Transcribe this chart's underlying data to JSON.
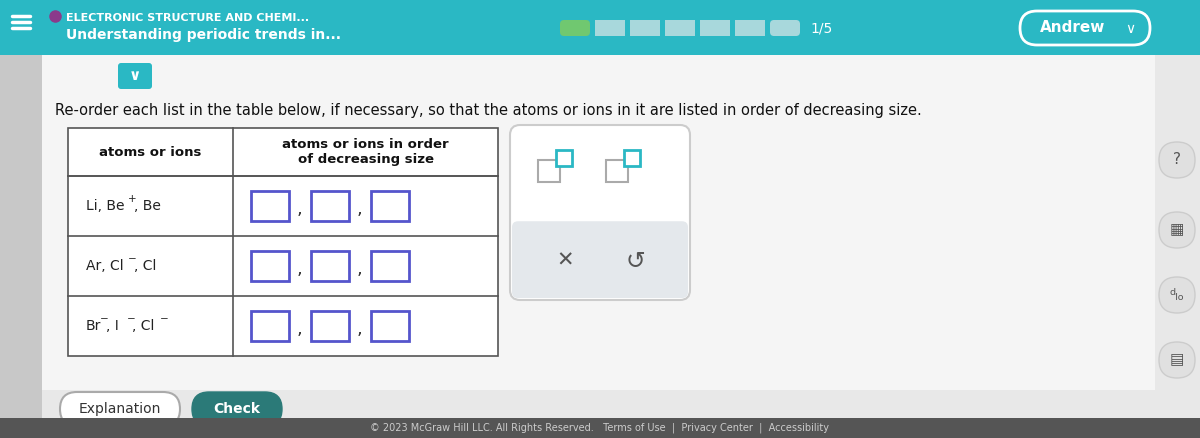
{
  "bg_color": "#f0f0f0",
  "content_bg": "#f5f5f5",
  "header_bg": "#2ab8c4",
  "header_text1": "ELECTRONIC STRUCTURE AND CHEMI...",
  "header_text2": "Understanding periodic trends in...",
  "header_left_bar_color": "#b0b0b0",
  "title_dot_color": "#8b3a8b",
  "progress_filled": "#70c870",
  "progress_empty": "#a8d8dc",
  "progress_text": "1/5",
  "user_label": "Andrew",
  "instruction": "Re-order each list in the table below, if necessary, so that the atoms or ions in it are listed in order of decreasing size.",
  "col1_header": "atoms or ions",
  "col2_header": "atoms or ions in order\nof decreasing size",
  "box_color": "#5555cc",
  "box_fill": "#ffffff",
  "dot_color": "#5555cc",
  "table_border": "#555555",
  "chevron_bg": "#2ab8c4",
  "drag_icon_color_teal": "#2ab8c4",
  "drag_icon_color_gray": "#999999",
  "x_color": "#555555",
  "refresh_color": "#555555",
  "explanation_btn_bg": "#ffffff",
  "explanation_btn_border": "#888888",
  "check_btn_bg": "#2b7a78",
  "check_btn_text": "#ffffff",
  "footer_bg": "#555555",
  "footer_text": "© 2023 McGraw Hill LLC. All Rights Reserved.   Terms of Use  |  Privacy Center  |  Accessibility",
  "sidebar_bg": "#e8e8e8"
}
